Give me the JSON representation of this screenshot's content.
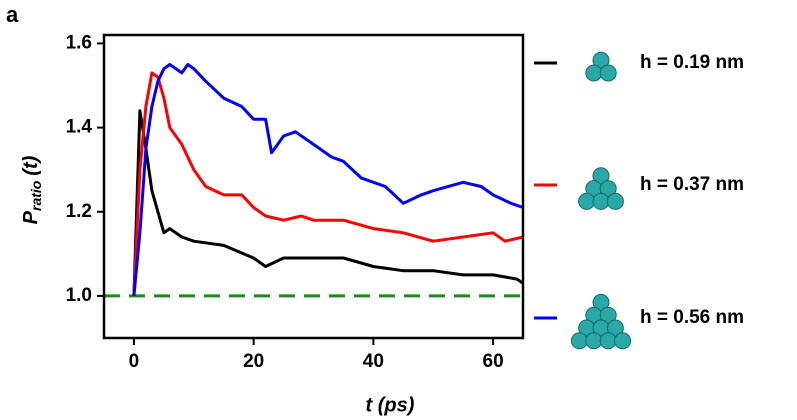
{
  "chart_data": {
    "type": "line",
    "panel_label": "a",
    "ylabel": "P",
    "ylabel_sub": "ratio",
    "ylabel_suffix": "(t)",
    "xlabel": "t (ps)",
    "xlim": [
      -5,
      65
    ],
    "ylim": [
      0.9,
      1.62
    ],
    "xticks": [
      0,
      20,
      40,
      60
    ],
    "yticks": [
      {
        "value": 1.0,
        "label": "1.0"
      },
      {
        "value": 1.2,
        "label": "1.2"
      },
      {
        "value": 1.4,
        "label": "1.4"
      },
      {
        "value": 1.6,
        "label": "1.6"
      }
    ],
    "reference_line": {
      "value": 1.0,
      "color": "#1a8c1a",
      "dashed": true
    },
    "series": [
      {
        "name": "h = 0.19 nm",
        "color": "#000000",
        "x": [
          0,
          1,
          2,
          3,
          4,
          5,
          6,
          8,
          10,
          15,
          20,
          22,
          25,
          30,
          35,
          40,
          45,
          50,
          55,
          60,
          64,
          65
        ],
        "values": [
          1.0,
          1.44,
          1.35,
          1.25,
          1.2,
          1.15,
          1.16,
          1.14,
          1.13,
          1.12,
          1.09,
          1.07,
          1.09,
          1.09,
          1.09,
          1.07,
          1.06,
          1.06,
          1.05,
          1.05,
          1.04,
          1.03
        ]
      },
      {
        "name": "h = 0.37 nm",
        "color": "#ff0000",
        "x": [
          0,
          1,
          2,
          3,
          4,
          5,
          6,
          8,
          10,
          12,
          15,
          18,
          20,
          22,
          25,
          28,
          30,
          35,
          40,
          45,
          50,
          55,
          60,
          62,
          65
        ],
        "values": [
          1.0,
          1.3,
          1.45,
          1.53,
          1.52,
          1.47,
          1.4,
          1.36,
          1.3,
          1.26,
          1.24,
          1.24,
          1.21,
          1.19,
          1.18,
          1.19,
          1.18,
          1.18,
          1.16,
          1.15,
          1.13,
          1.14,
          1.15,
          1.13,
          1.14
        ]
      },
      {
        "name": "h = 0.56 nm",
        "color": "#0000ff",
        "x": [
          0,
          1,
          2,
          3,
          4,
          5,
          6,
          8,
          9,
          10,
          12,
          15,
          18,
          20,
          22,
          23,
          25,
          27,
          30,
          33,
          35,
          38,
          40,
          42,
          45,
          48,
          50,
          55,
          58,
          60,
          63,
          65
        ],
        "values": [
          1.0,
          1.15,
          1.35,
          1.45,
          1.51,
          1.54,
          1.55,
          1.53,
          1.55,
          1.54,
          1.51,
          1.47,
          1.45,
          1.42,
          1.42,
          1.34,
          1.38,
          1.39,
          1.36,
          1.33,
          1.32,
          1.28,
          1.27,
          1.26,
          1.22,
          1.24,
          1.25,
          1.27,
          1.26,
          1.24,
          1.22,
          1.21
        ]
      }
    ]
  }
}
